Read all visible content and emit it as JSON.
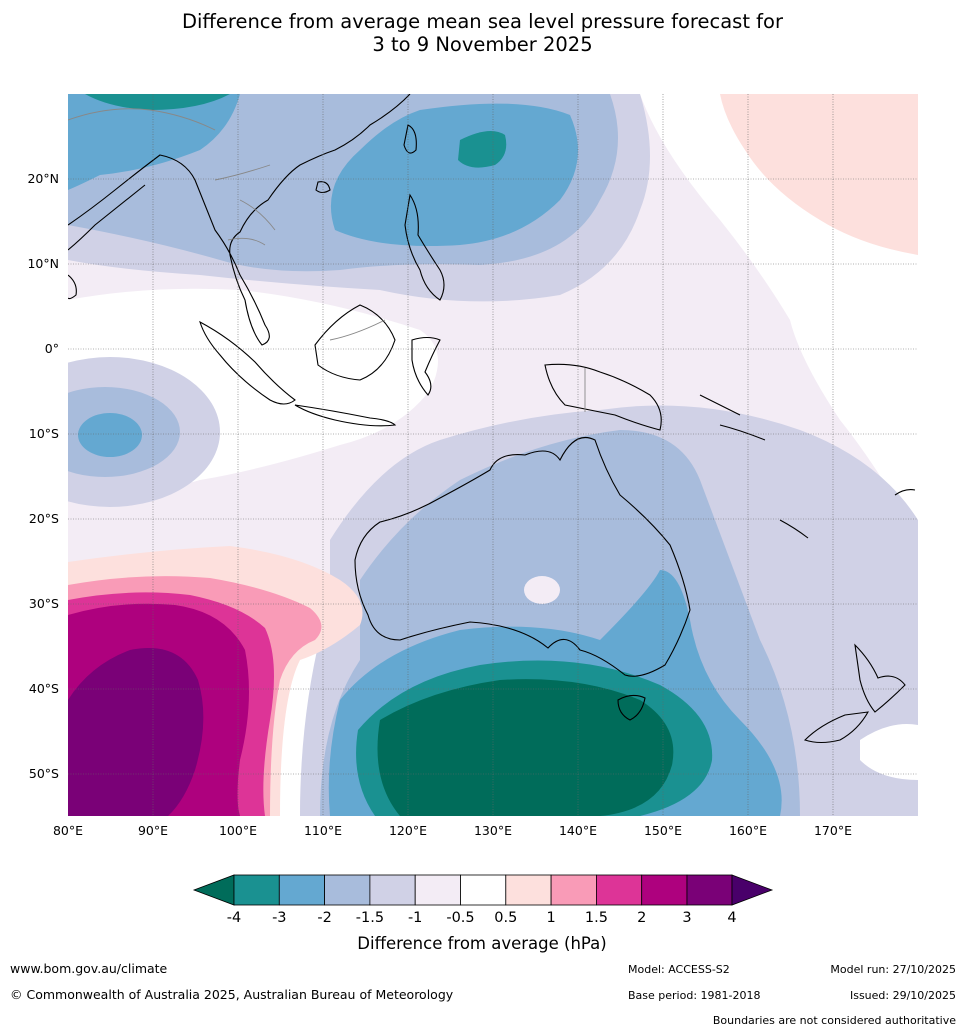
{
  "title_line1": "Difference from average mean sea level pressure forecast for",
  "title_line2": "3 to 9 November 2025",
  "map": {
    "lat_labels": [
      "20°N",
      "10°N",
      "0°",
      "10°S",
      "20°S",
      "30°S",
      "40°S",
      "50°S"
    ],
    "lon_labels": [
      "80°E",
      "90°E",
      "100°E",
      "110°E",
      "120°E",
      "130°E",
      "140°E",
      "150°E",
      "160°E",
      "170°E"
    ],
    "extent": {
      "lon_min": 80,
      "lon_max": 180,
      "lat_min": -55,
      "lat_max": 30
    }
  },
  "colorbar": {
    "title": "Difference from average (hPa)",
    "ticks": [
      "-4",
      "-3",
      "-2",
      "-1.5",
      "-1",
      "-0.5",
      "0.5",
      "1",
      "1.5",
      "2",
      "3",
      "4"
    ],
    "colors": [
      "#006c5a",
      "#1a9191",
      "#64a8d1",
      "#a8bcdc",
      "#d0d1e6",
      "#f3ecf5",
      "#ffffff",
      "#fde0dd",
      "#f99bb7",
      "#dd3497",
      "#ae017e",
      "#7a0177",
      "#49006a"
    ]
  },
  "footer": {
    "website": "www.bom.gov.au/climate",
    "copyright": "© Commonwealth of Australia 2025, Australian Bureau of Meteorology",
    "model": "Model: ACCESS-S2",
    "base_period": "Base period: 1981-2018",
    "model_run": "Model run: 27/10/2025",
    "issued": "Issued: 29/10/2025",
    "disclaimer": "Boundaries are not considered authoritative"
  }
}
